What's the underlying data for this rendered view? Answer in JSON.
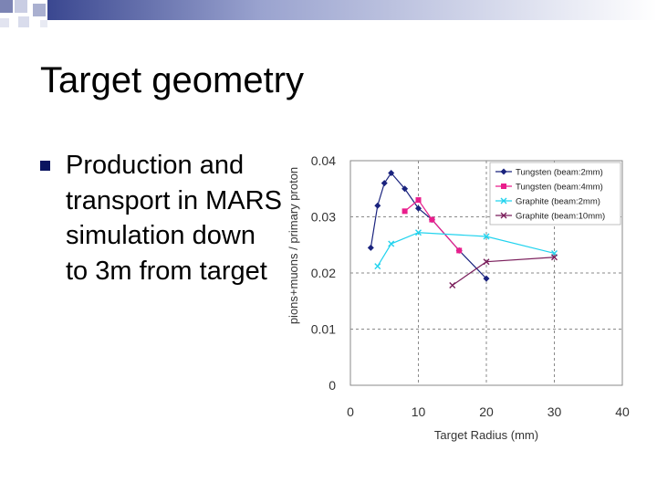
{
  "slide": {
    "title": "Target geometry",
    "bullet": "Production and transport in MARS simulation down to 3m from target",
    "accent_color": "#0b1560"
  },
  "chart_data": {
    "type": "line",
    "xlabel": "Target Radius (mm)",
    "ylabel": "pions+muons / primary proton",
    "xlim": [
      0,
      40
    ],
    "ylim": [
      0,
      0.04
    ],
    "x_ticks": [
      "0",
      "10",
      "20",
      "30",
      "40"
    ],
    "y_ticks": [
      "0",
      "0.01",
      "0.02",
      "0.03",
      "0.04"
    ],
    "grid": true,
    "legend_position": "top-right",
    "series": [
      {
        "name": "Tungsten (beam:2mm)",
        "marker": "diamond",
        "color": "#1a237e",
        "x": [
          3,
          4,
          5,
          6,
          8,
          10,
          12,
          16,
          20
        ],
        "y": [
          0.0245,
          0.032,
          0.036,
          0.0378,
          0.035,
          0.0315,
          0.0295,
          0.024,
          0.019
        ]
      },
      {
        "name": "Tungsten (beam:4mm)",
        "marker": "square",
        "color": "#e91e8c",
        "x": [
          8,
          10,
          12,
          16
        ],
        "y": [
          0.031,
          0.033,
          0.0295,
          0.024
        ]
      },
      {
        "name": "Graphite (beam:2mm)",
        "marker": "x",
        "color": "#22d3ee",
        "x": [
          4,
          6,
          10,
          20,
          30
        ],
        "y": [
          0.0212,
          0.0252,
          0.0272,
          0.0265,
          0.0235
        ]
      },
      {
        "name": "Graphite (beam:10mm)",
        "marker": "x",
        "color": "#7b1f5c",
        "x": [
          15,
          20,
          30
        ],
        "y": [
          0.0178,
          0.022,
          0.0228
        ]
      }
    ]
  }
}
